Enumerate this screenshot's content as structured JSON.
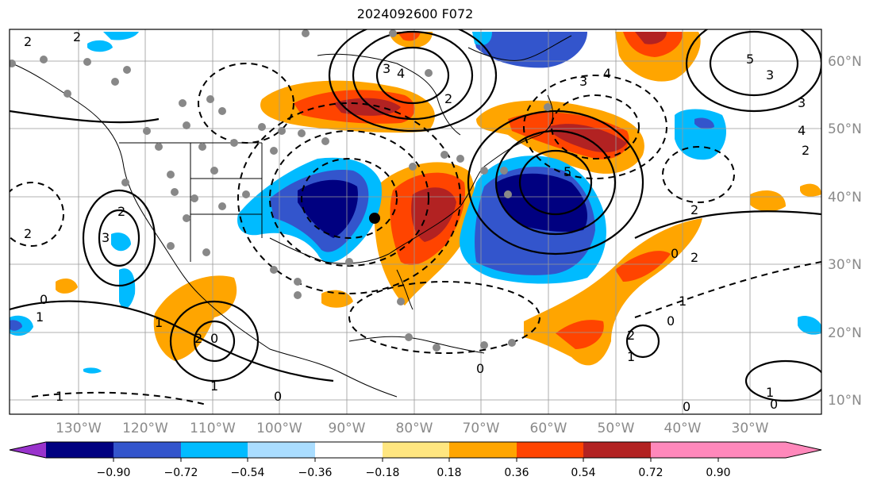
{
  "title": "2024092600 F072",
  "map": {
    "lon_ticks": [
      "130°W",
      "120°W",
      "110°W",
      "100°W",
      "90°W",
      "80°W",
      "70°W",
      "60°W",
      "50°W",
      "40°W",
      "30°W"
    ],
    "lat_ticks": [
      "60°N",
      "50°N",
      "40°N",
      "30°N",
      "20°N",
      "10°N"
    ],
    "contour_labels": [
      "2",
      "2",
      "3",
      "4",
      "5",
      "4",
      "3",
      "2",
      "1",
      "0",
      "0",
      "1",
      "2",
      "3",
      "2",
      "2",
      "0",
      "1",
      "2",
      "3",
      "4",
      "5",
      "3",
      "2",
      "0",
      "0",
      "1",
      "2",
      "1",
      "0",
      "1",
      "0",
      "1",
      "2",
      "0"
    ]
  },
  "colorbar": {
    "labels": [
      "−0.90",
      "−0.72",
      "−0.54",
      "−0.36",
      "−0.18",
      "0.18",
      "0.36",
      "0.54",
      "0.72",
      "0.90"
    ],
    "colors": [
      "#9933cc",
      "#000080",
      "#3355cc",
      "#00bbff",
      "#aaddff",
      "#ffffff",
      "#ffe680",
      "#ffa500",
      "#ff4400",
      "#b22222",
      "#ff88bb"
    ]
  }
}
